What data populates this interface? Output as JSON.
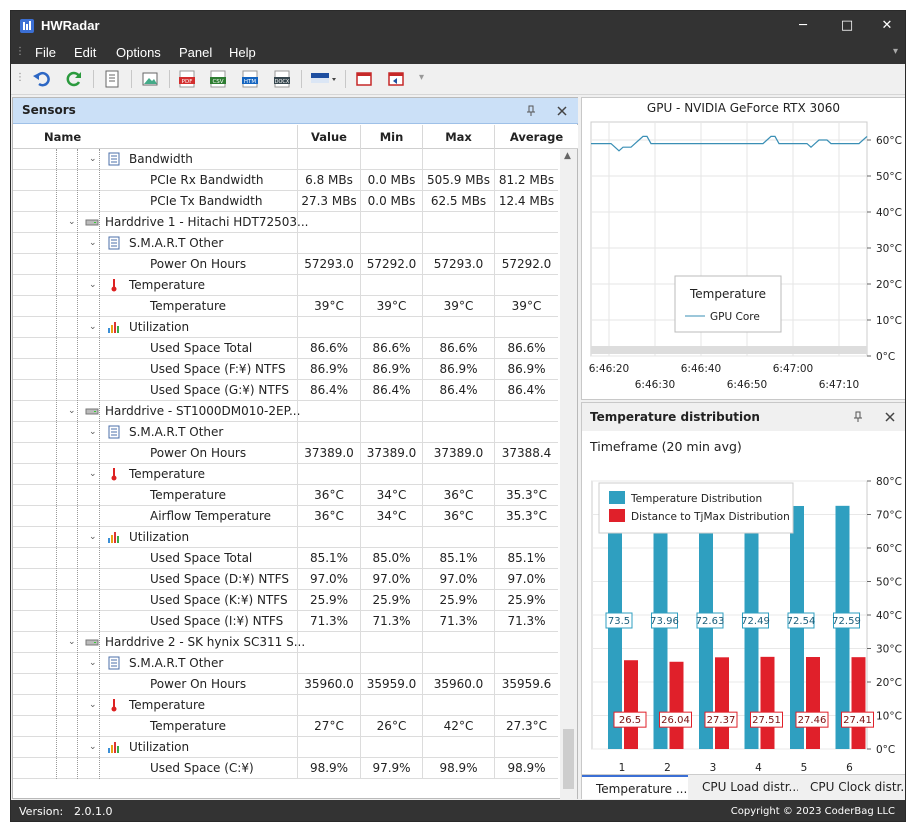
{
  "app": {
    "title": "HWRadar"
  },
  "window_controls": {
    "minimize": "─",
    "maximize": "□",
    "close": "✕"
  },
  "menu": [
    "File",
    "Edit",
    "Options",
    "Panel",
    "Help"
  ],
  "toolbar_icons": [
    "undo-icon",
    "refresh-icon",
    "report-icon",
    "image-icon",
    "pdf-icon",
    "csv-icon",
    "htm-icon",
    "docx-icon",
    "color-theme-icon",
    "window-icon",
    "restore-icon"
  ],
  "sensors_panel": {
    "title": "Sensors",
    "columns": [
      "Name",
      "Value",
      "Min",
      "Max",
      "Average"
    ],
    "rows": [
      {
        "level": 2,
        "expander": "⌄",
        "icon": "list-icon",
        "name": "Bandwidth",
        "vals": [
          "",
          "",
          "",
          ""
        ]
      },
      {
        "level": 3,
        "expander": "",
        "icon": "",
        "name": "PCIe Rx Bandwidth",
        "vals": [
          "6.8 MBs",
          "0.0 MBs",
          "505.9 MBs",
          "81.2 MBs"
        ]
      },
      {
        "level": 3,
        "expander": "",
        "icon": "",
        "name": "PCIe Tx Bandwidth",
        "vals": [
          "27.3 MBs",
          "0.0 MBs",
          "62.5 MBs",
          "12.4 MBs"
        ]
      },
      {
        "level": 1,
        "expander": "⌄",
        "icon": "harddrive-icon",
        "name": "Harddrive 1 - Hitachi HDT72503...",
        "vals": [
          "",
          "",
          "",
          ""
        ]
      },
      {
        "level": 2,
        "expander": "⌄",
        "icon": "list-icon",
        "name": "S.M.A.R.T Other",
        "vals": [
          "",
          "",
          "",
          ""
        ]
      },
      {
        "level": 3,
        "expander": "",
        "icon": "",
        "name": "Power On Hours",
        "vals": [
          "57293.0",
          "57292.0",
          "57293.0",
          "57292.0"
        ]
      },
      {
        "level": 2,
        "expander": "⌄",
        "icon": "thermometer-icon",
        "name": "Temperature",
        "vals": [
          "",
          "",
          "",
          ""
        ]
      },
      {
        "level": 3,
        "expander": "",
        "icon": "",
        "name": "Temperature",
        "vals": [
          "39°C",
          "39°C",
          "39°C",
          "39°C"
        ]
      },
      {
        "level": 2,
        "expander": "⌄",
        "icon": "bar-chart-icon",
        "name": "Utilization",
        "vals": [
          "",
          "",
          "",
          ""
        ]
      },
      {
        "level": 3,
        "expander": "",
        "icon": "",
        "name": "Used Space Total",
        "vals": [
          "86.6%",
          "86.6%",
          "86.6%",
          "86.6%"
        ]
      },
      {
        "level": 3,
        "expander": "",
        "icon": "",
        "name": "Used Space (F:¥) NTFS",
        "vals": [
          "86.9%",
          "86.9%",
          "86.9%",
          "86.9%"
        ]
      },
      {
        "level": 3,
        "expander": "",
        "icon": "",
        "name": "Used Space (G:¥) NTFS",
        "vals": [
          "86.4%",
          "86.4%",
          "86.4%",
          "86.4%"
        ]
      },
      {
        "level": 1,
        "expander": "⌄",
        "icon": "harddrive-icon",
        "name": "Harddrive - ST1000DM010-2EP...",
        "vals": [
          "",
          "",
          "",
          ""
        ]
      },
      {
        "level": 2,
        "expander": "⌄",
        "icon": "list-icon",
        "name": "S.M.A.R.T Other",
        "vals": [
          "",
          "",
          "",
          ""
        ]
      },
      {
        "level": 3,
        "expander": "",
        "icon": "",
        "name": "Power On Hours",
        "vals": [
          "37389.0",
          "37389.0",
          "37389.0",
          "37388.4"
        ]
      },
      {
        "level": 2,
        "expander": "⌄",
        "icon": "thermometer-icon",
        "name": "Temperature",
        "vals": [
          "",
          "",
          "",
          ""
        ]
      },
      {
        "level": 3,
        "expander": "",
        "icon": "",
        "name": "Temperature",
        "vals": [
          "36°C",
          "34°C",
          "36°C",
          "35.3°C"
        ]
      },
      {
        "level": 3,
        "expander": "",
        "icon": "",
        "name": "Airflow Temperature",
        "vals": [
          "36°C",
          "34°C",
          "36°C",
          "35.3°C"
        ]
      },
      {
        "level": 2,
        "expander": "⌄",
        "icon": "bar-chart-icon",
        "name": "Utilization",
        "vals": [
          "",
          "",
          "",
          ""
        ]
      },
      {
        "level": 3,
        "expander": "",
        "icon": "",
        "name": "Used Space Total",
        "vals": [
          "85.1%",
          "85.0%",
          "85.1%",
          "85.1%"
        ]
      },
      {
        "level": 3,
        "expander": "",
        "icon": "",
        "name": "Used Space (D:¥) NTFS",
        "vals": [
          "97.0%",
          "97.0%",
          "97.0%",
          "97.0%"
        ]
      },
      {
        "level": 3,
        "expander": "",
        "icon": "",
        "name": "Used Space (K:¥) NTFS",
        "vals": [
          "25.9%",
          "25.9%",
          "25.9%",
          "25.9%"
        ]
      },
      {
        "level": 3,
        "expander": "",
        "icon": "",
        "name": "Used Space (I:¥) NTFS",
        "vals": [
          "71.3%",
          "71.3%",
          "71.3%",
          "71.3%"
        ]
      },
      {
        "level": 1,
        "expander": "⌄",
        "icon": "harddrive-icon",
        "name": "Harddrive 2 - SK hynix SC311 S...",
        "vals": [
          "",
          "",
          "",
          ""
        ]
      },
      {
        "level": 2,
        "expander": "⌄",
        "icon": "list-icon",
        "name": "S.M.A.R.T Other",
        "vals": [
          "",
          "",
          "",
          ""
        ]
      },
      {
        "level": 3,
        "expander": "",
        "icon": "",
        "name": "Power On Hours",
        "vals": [
          "35960.0",
          "35959.0",
          "35960.0",
          "35959.6"
        ]
      },
      {
        "level": 2,
        "expander": "⌄",
        "icon": "thermometer-icon",
        "name": "Temperature",
        "vals": [
          "",
          "",
          "",
          ""
        ]
      },
      {
        "level": 3,
        "expander": "",
        "icon": "",
        "name": "Temperature",
        "vals": [
          "27°C",
          "26°C",
          "42°C",
          "27.3°C"
        ]
      },
      {
        "level": 2,
        "expander": "⌄",
        "icon": "bar-chart-icon",
        "name": "Utilization",
        "vals": [
          "",
          "",
          "",
          ""
        ]
      },
      {
        "level": 3,
        "expander": "",
        "icon": "",
        "name": "Used Space (C:¥)",
        "vals": [
          "98.9%",
          "97.9%",
          "98.9%",
          "98.9%"
        ]
      }
    ]
  },
  "status_bar": {
    "version_label": "Version:",
    "version": "2.0.1.0",
    "copyright": "Copyright © 2023 CoderBag LLC"
  },
  "temp_panel": {
    "title": "Temperature distribution",
    "timeframe": "Timeframe (20 min avg)",
    "tabs": [
      "Temperature ...",
      "CPU Load distr...",
      "CPU Clock distr..."
    ]
  },
  "chart_data": [
    {
      "type": "line",
      "title": "GPU - NVIDIA GeForce RTX 3060",
      "x_ticks": [
        "6:46:20",
        "6:46:30",
        "6:46:40",
        "6:46:50",
        "6:47:00",
        "6:47:10"
      ],
      "y_ticks": [
        "0°C",
        "10°C",
        "20°C",
        "30°C",
        "40°C",
        "50°C",
        "60°C"
      ],
      "ylim": [
        0,
        65
      ],
      "legend_title": "Temperature",
      "legend_position": "bottom-center",
      "series": [
        {
          "name": "GPU Core",
          "color": "#3a8fb5",
          "values": [
            59,
            59,
            59,
            59,
            59,
            59,
            58,
            57,
            58,
            58,
            58,
            59,
            60,
            61,
            61,
            59,
            59,
            59,
            59,
            59,
            59,
            59,
            59,
            59,
            59,
            59,
            59,
            59,
            59,
            59,
            59,
            59,
            59,
            59,
            59,
            59,
            59,
            59,
            59,
            59,
            59,
            59,
            59,
            59,
            60,
            61,
            61,
            59,
            59,
            59,
            59,
            59,
            59,
            59,
            59,
            58,
            59,
            60,
            60,
            60,
            59,
            59,
            59,
            59,
            59,
            59,
            59,
            59,
            60,
            61
          ]
        }
      ]
    },
    {
      "type": "bar",
      "categories": [
        "1",
        "2",
        "3",
        "4",
        "5",
        "6"
      ],
      "y_ticks": [
        "0°C",
        "10°C",
        "20°C",
        "30°C",
        "40°C",
        "50°C",
        "60°C",
        "70°C",
        "80°C"
      ],
      "ylim": [
        0,
        80
      ],
      "legend_position": "top-left",
      "series": [
        {
          "name": "Temperature Distribution",
          "color": "#2f9fc0",
          "values": [
            73.5,
            73.96,
            72.63,
            72.49,
            72.54,
            72.59
          ]
        },
        {
          "name": "Distance to TjMax Distribution",
          "color": "#e0202a",
          "values": [
            26.5,
            26.04,
            27.37,
            27.51,
            27.46,
            27.41
          ]
        }
      ]
    }
  ]
}
